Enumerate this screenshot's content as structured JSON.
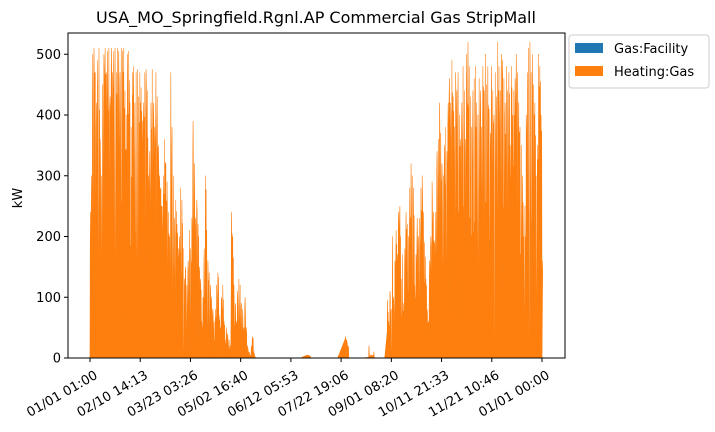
{
  "chart_data": {
    "type": "area",
    "title": "USA_MO_Springfield.Rgnl.AP Commercial Gas StripMall",
    "xlabel": "",
    "ylabel": "kW",
    "ylim": [
      0,
      535
    ],
    "yticks": [
      0,
      100,
      200,
      300,
      400,
      500
    ],
    "xtick_labels": [
      "01/01 01:00",
      "02/10 14:13",
      "03/23 03:26",
      "05/02 16:40",
      "06/12 05:53",
      "07/22 19:06",
      "09/01 08:20",
      "10/11 21:33",
      "11/21 10:46",
      "01/01 00:00"
    ],
    "x_range_days": [
      0,
      365
    ],
    "legend": "upper-right-outside",
    "grid": false,
    "series": [
      {
        "name": "Gas:Facility",
        "color": "#1f77b4",
        "note_hidden": true
      },
      {
        "name": "Heating:Gas",
        "color": "#ff7f0e"
      }
    ],
    "daily_peaks": [
      [
        0.0,
        240
      ],
      [
        1.0,
        300
      ],
      [
        2.0,
        500
      ],
      [
        3.0,
        510
      ],
      [
        4.0,
        470
      ],
      [
        5.0,
        420
      ],
      [
        6.0,
        490
      ],
      [
        7.0,
        510
      ],
      [
        8.0,
        360
      ],
      [
        9.0,
        300
      ],
      [
        10.0,
        450
      ],
      [
        11.0,
        500
      ],
      [
        12.0,
        510
      ],
      [
        13.0,
        470
      ],
      [
        14.0,
        505
      ],
      [
        15.0,
        510
      ],
      [
        16.0,
        430
      ],
      [
        17.0,
        510
      ],
      [
        18.0,
        470
      ],
      [
        19.0,
        505
      ],
      [
        20.0,
        510
      ],
      [
        21.0,
        470
      ],
      [
        22.0,
        510
      ],
      [
        23.0,
        505
      ],
      [
        24.0,
        470
      ],
      [
        25.0,
        510
      ],
      [
        26.0,
        505
      ],
      [
        27.0,
        510
      ],
      [
        28.0,
        440
      ],
      [
        29.0,
        400
      ],
      [
        30.0,
        500
      ],
      [
        31.0,
        505
      ],
      [
        32.0,
        420
      ],
      [
        33.0,
        380
      ],
      [
        34.0,
        470
      ],
      [
        35.0,
        480
      ],
      [
        36.0,
        420
      ],
      [
        37.0,
        470
      ],
      [
        38.0,
        475
      ],
      [
        39.0,
        430
      ],
      [
        40.0,
        470
      ],
      [
        41.0,
        445
      ],
      [
        42.0,
        390
      ],
      [
        43.0,
        420
      ],
      [
        44.0,
        470
      ],
      [
        45.0,
        475
      ],
      [
        46.0,
        440
      ],
      [
        47.0,
        300
      ],
      [
        48.0,
        340
      ],
      [
        49.0,
        420
      ],
      [
        50.0,
        475
      ],
      [
        51.0,
        420
      ],
      [
        52.0,
        380
      ],
      [
        53.0,
        470
      ],
      [
        54.0,
        430
      ],
      [
        55.0,
        350
      ],
      [
        56.0,
        300
      ],
      [
        57.0,
        280
      ],
      [
        58.0,
        250
      ],
      [
        59.0,
        300
      ],
      [
        60.0,
        360
      ],
      [
        61.0,
        320
      ],
      [
        62.0,
        290
      ],
      [
        63.0,
        240
      ],
      [
        64.0,
        200
      ],
      [
        65.0,
        470
      ],
      [
        66.0,
        380
      ],
      [
        67.0,
        300
      ],
      [
        68.0,
        230
      ],
      [
        69.0,
        260
      ],
      [
        70.0,
        220
      ],
      [
        71.0,
        180
      ],
      [
        72.0,
        200
      ],
      [
        73.0,
        280
      ],
      [
        74.0,
        260
      ],
      [
        75.0,
        180
      ],
      [
        76.0,
        130
      ],
      [
        77.0,
        150
      ],
      [
        78.0,
        120
      ],
      [
        79.0,
        160
      ],
      [
        80.0,
        210
      ],
      [
        81.0,
        180
      ],
      [
        82.0,
        230
      ],
      [
        83.0,
        390
      ],
      [
        84.0,
        320
      ],
      [
        85.0,
        230
      ],
      [
        86.0,
        260
      ],
      [
        87.0,
        220
      ],
      [
        88.0,
        150
      ],
      [
        89.0,
        130
      ],
      [
        90.0,
        60
      ],
      [
        91.0,
        100
      ],
      [
        92.0,
        180
      ],
      [
        93.0,
        300
      ],
      [
        94.0,
        210
      ],
      [
        95.0,
        160
      ],
      [
        96.0,
        140
      ],
      [
        97.0,
        120
      ],
      [
        98.0,
        100
      ],
      [
        99.0,
        80
      ],
      [
        100.0,
        60
      ],
      [
        101.0,
        80
      ],
      [
        102.0,
        120
      ],
      [
        103.0,
        140
      ],
      [
        104.0,
        70
      ],
      [
        105.0,
        50
      ],
      [
        106.0,
        100
      ],
      [
        107.0,
        120
      ],
      [
        108.0,
        60
      ],
      [
        109.0,
        30
      ],
      [
        110.0,
        50
      ],
      [
        111.0,
        40
      ],
      [
        112.0,
        30
      ],
      [
        113.0,
        20
      ],
      [
        114.0,
        240
      ],
      [
        115.0,
        200
      ],
      [
        116.0,
        120
      ],
      [
        117.0,
        90
      ],
      [
        118.0,
        60
      ],
      [
        119.0,
        110
      ],
      [
        120.0,
        130
      ],
      [
        121.0,
        120
      ],
      [
        122.0,
        90
      ],
      [
        123.0,
        80
      ],
      [
        124.0,
        50
      ],
      [
        125.0,
        100
      ],
      [
        126.0,
        50
      ],
      [
        127.0,
        20
      ],
      [
        128.0,
        10
      ],
      [
        129.0,
        5
      ],
      [
        130.0,
        20
      ],
      [
        131.0,
        35
      ],
      [
        132.0,
        10
      ],
      [
        133.0,
        2
      ],
      [
        134.0,
        0
      ],
      [
        135.0,
        0
      ],
      [
        140.0,
        0
      ],
      [
        150.0,
        0
      ],
      [
        160.0,
        0
      ],
      [
        170.0,
        0
      ],
      [
        175.0,
        5
      ],
      [
        180.0,
        0
      ],
      [
        190.0,
        0
      ],
      [
        200.0,
        0
      ],
      [
        206.0,
        35
      ],
      [
        207.0,
        30
      ],
      [
        208.0,
        20
      ],
      [
        209.0,
        0
      ],
      [
        220.0,
        0
      ],
      [
        225.0,
        20
      ],
      [
        226.0,
        5
      ],
      [
        229.0,
        10
      ],
      [
        230.0,
        0
      ],
      [
        238.0,
        0
      ],
      [
        240.0,
        95
      ],
      [
        241.0,
        60
      ],
      [
        242.0,
        110
      ],
      [
        243.0,
        80
      ],
      [
        244.0,
        200
      ],
      [
        245.0,
        100
      ],
      [
        246.0,
        160
      ],
      [
        247.0,
        210
      ],
      [
        248.0,
        170
      ],
      [
        249.0,
        240
      ],
      [
        250.0,
        250
      ],
      [
        251.0,
        130
      ],
      [
        252.0,
        170
      ],
      [
        253.0,
        90
      ],
      [
        254.0,
        180
      ],
      [
        255.0,
        240
      ],
      [
        256.0,
        220
      ],
      [
        257.0,
        200
      ],
      [
        258.0,
        280
      ],
      [
        259.0,
        320
      ],
      [
        260.0,
        300
      ],
      [
        261.0,
        280
      ],
      [
        262.0,
        120
      ],
      [
        263.0,
        170
      ],
      [
        264.0,
        230
      ],
      [
        265.0,
        200
      ],
      [
        266.0,
        230
      ],
      [
        267.0,
        280
      ],
      [
        268.0,
        300
      ],
      [
        269.0,
        240
      ],
      [
        270.0,
        190
      ],
      [
        271.0,
        130
      ],
      [
        272.0,
        80
      ],
      [
        273.0,
        60
      ],
      [
        274.0,
        160
      ],
      [
        275.0,
        200
      ],
      [
        276.0,
        290
      ],
      [
        277.0,
        240
      ],
      [
        278.0,
        190
      ],
      [
        279.0,
        240
      ],
      [
        280.0,
        340
      ],
      [
        281.0,
        360
      ],
      [
        282.0,
        420
      ],
      [
        283.0,
        370
      ],
      [
        284.0,
        320
      ],
      [
        285.0,
        300
      ],
      [
        286.0,
        350
      ],
      [
        287.0,
        380
      ],
      [
        288.0,
        340
      ],
      [
        289.0,
        420
      ],
      [
        290.0,
        460
      ],
      [
        291.0,
        420
      ],
      [
        292.0,
        490
      ],
      [
        293.0,
        430
      ],
      [
        294.0,
        380
      ],
      [
        295.0,
        470
      ],
      [
        296.0,
        440
      ],
      [
        297.0,
        470
      ],
      [
        298.0,
        400
      ],
      [
        299.0,
        360
      ],
      [
        300.0,
        420
      ],
      [
        301.0,
        480
      ],
      [
        302.0,
        440
      ],
      [
        303.0,
        360
      ],
      [
        304.0,
        500
      ],
      [
        305.0,
        520
      ],
      [
        306.0,
        480
      ],
      [
        307.0,
        430
      ],
      [
        308.0,
        380
      ],
      [
        309.0,
        440
      ],
      [
        310.0,
        460
      ],
      [
        311.0,
        480
      ],
      [
        312.0,
        420
      ],
      [
        313.0,
        400
      ],
      [
        314.0,
        460
      ],
      [
        315.0,
        440
      ],
      [
        316.0,
        380
      ],
      [
        317.0,
        480
      ],
      [
        318.0,
        440
      ],
      [
        319.0,
        500
      ],
      [
        320.0,
        450
      ],
      [
        321.0,
        480
      ],
      [
        322.0,
        410
      ],
      [
        323.0,
        370
      ],
      [
        324.0,
        480
      ],
      [
        325.0,
        440
      ],
      [
        326.0,
        400
      ],
      [
        327.0,
        470
      ],
      [
        328.0,
        430
      ],
      [
        329.0,
        520
      ],
      [
        330.0,
        480
      ],
      [
        331.0,
        440
      ],
      [
        332.0,
        500
      ],
      [
        333.0,
        490
      ],
      [
        334.0,
        460
      ],
      [
        335.0,
        420
      ],
      [
        336.0,
        480
      ],
      [
        337.0,
        440
      ],
      [
        338.0,
        470
      ],
      [
        339.0,
        350
      ],
      [
        340.0,
        480
      ],
      [
        341.0,
        400
      ],
      [
        342.0,
        440
      ],
      [
        343.0,
        460
      ],
      [
        344.0,
        500
      ],
      [
        345.0,
        470
      ],
      [
        346.0,
        420
      ],
      [
        347.0,
        380
      ],
      [
        348.0,
        350
      ],
      [
        349.0,
        300
      ],
      [
        350.0,
        200
      ],
      [
        351.0,
        250
      ],
      [
        352.0,
        400
      ],
      [
        353.0,
        470
      ],
      [
        354.0,
        510
      ],
      [
        355.0,
        520
      ],
      [
        356.0,
        470
      ],
      [
        357.0,
        500
      ],
      [
        358.0,
        450
      ],
      [
        359.0,
        420
      ],
      [
        360.0,
        300
      ],
      [
        361.0,
        350
      ],
      [
        362.0,
        500
      ],
      [
        363.0,
        480
      ],
      [
        364.0,
        400
      ],
      [
        365.0,
        160
      ]
    ]
  }
}
